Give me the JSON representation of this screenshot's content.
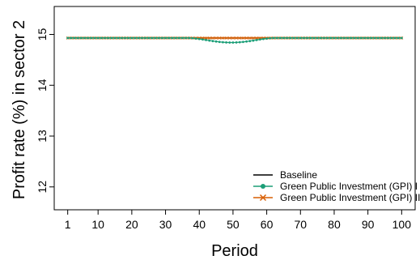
{
  "chart_data": {
    "type": "line",
    "title": "",
    "xlabel": "Period",
    "ylabel": "Profit rate (%) in sector 2",
    "xlim": [
      -3,
      104
    ],
    "ylim": [
      11.55,
      15.55
    ],
    "xticks": [
      1,
      10,
      20,
      30,
      40,
      50,
      60,
      70,
      80,
      90,
      100
    ],
    "yticks": [
      12,
      13,
      14,
      15
    ],
    "grid": false,
    "legend_position": "bottom-right",
    "baseline_value": 14.93,
    "gpi_dip": {
      "center_period": 49.5,
      "min_value": 14.84,
      "start_period": 37,
      "end_period": 63
    },
    "gpi1_marker_every": 1,
    "gpi2_marker_every": 1,
    "series": [
      {
        "name": "Baseline",
        "color": "#000000",
        "marker": "none"
      },
      {
        "name": "Green Public Investment (GPI) I",
        "color": "#1b9e77",
        "marker": "circle"
      },
      {
        "name": "Green Public Investment (GPI) II",
        "color": "#d95f02",
        "marker": "x"
      }
    ]
  }
}
